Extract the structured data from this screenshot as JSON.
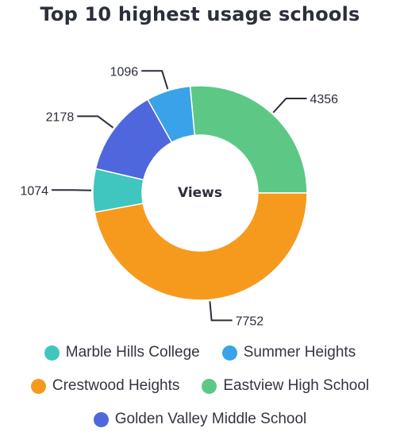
{
  "chart_data": {
    "type": "donut",
    "title": "Top 10 highest usage schools",
    "center_label": "Views",
    "slices": [
      {
        "name": "Eastview High School",
        "value": 4356,
        "color": "#5dc886"
      },
      {
        "name": "Summer Heights",
        "value": 1096,
        "color": "#3aa2e8"
      },
      {
        "name": "Golden Valley Middle School",
        "value": 2178,
        "color": "#4f67dd"
      },
      {
        "name": "Marble Hills College",
        "value": 1074,
        "color": "#3fc6bf"
      },
      {
        "name": "Crestwood Heights",
        "value": 7752,
        "color": "#f69a1e"
      }
    ],
    "legend_position": "bottom",
    "legend": [
      [
        "Marble Hills College",
        "Summer Heights"
      ],
      [
        "Crestwood Heights",
        "Eastview High School"
      ],
      [
        "Golden Valley Middle School"
      ]
    ]
  }
}
